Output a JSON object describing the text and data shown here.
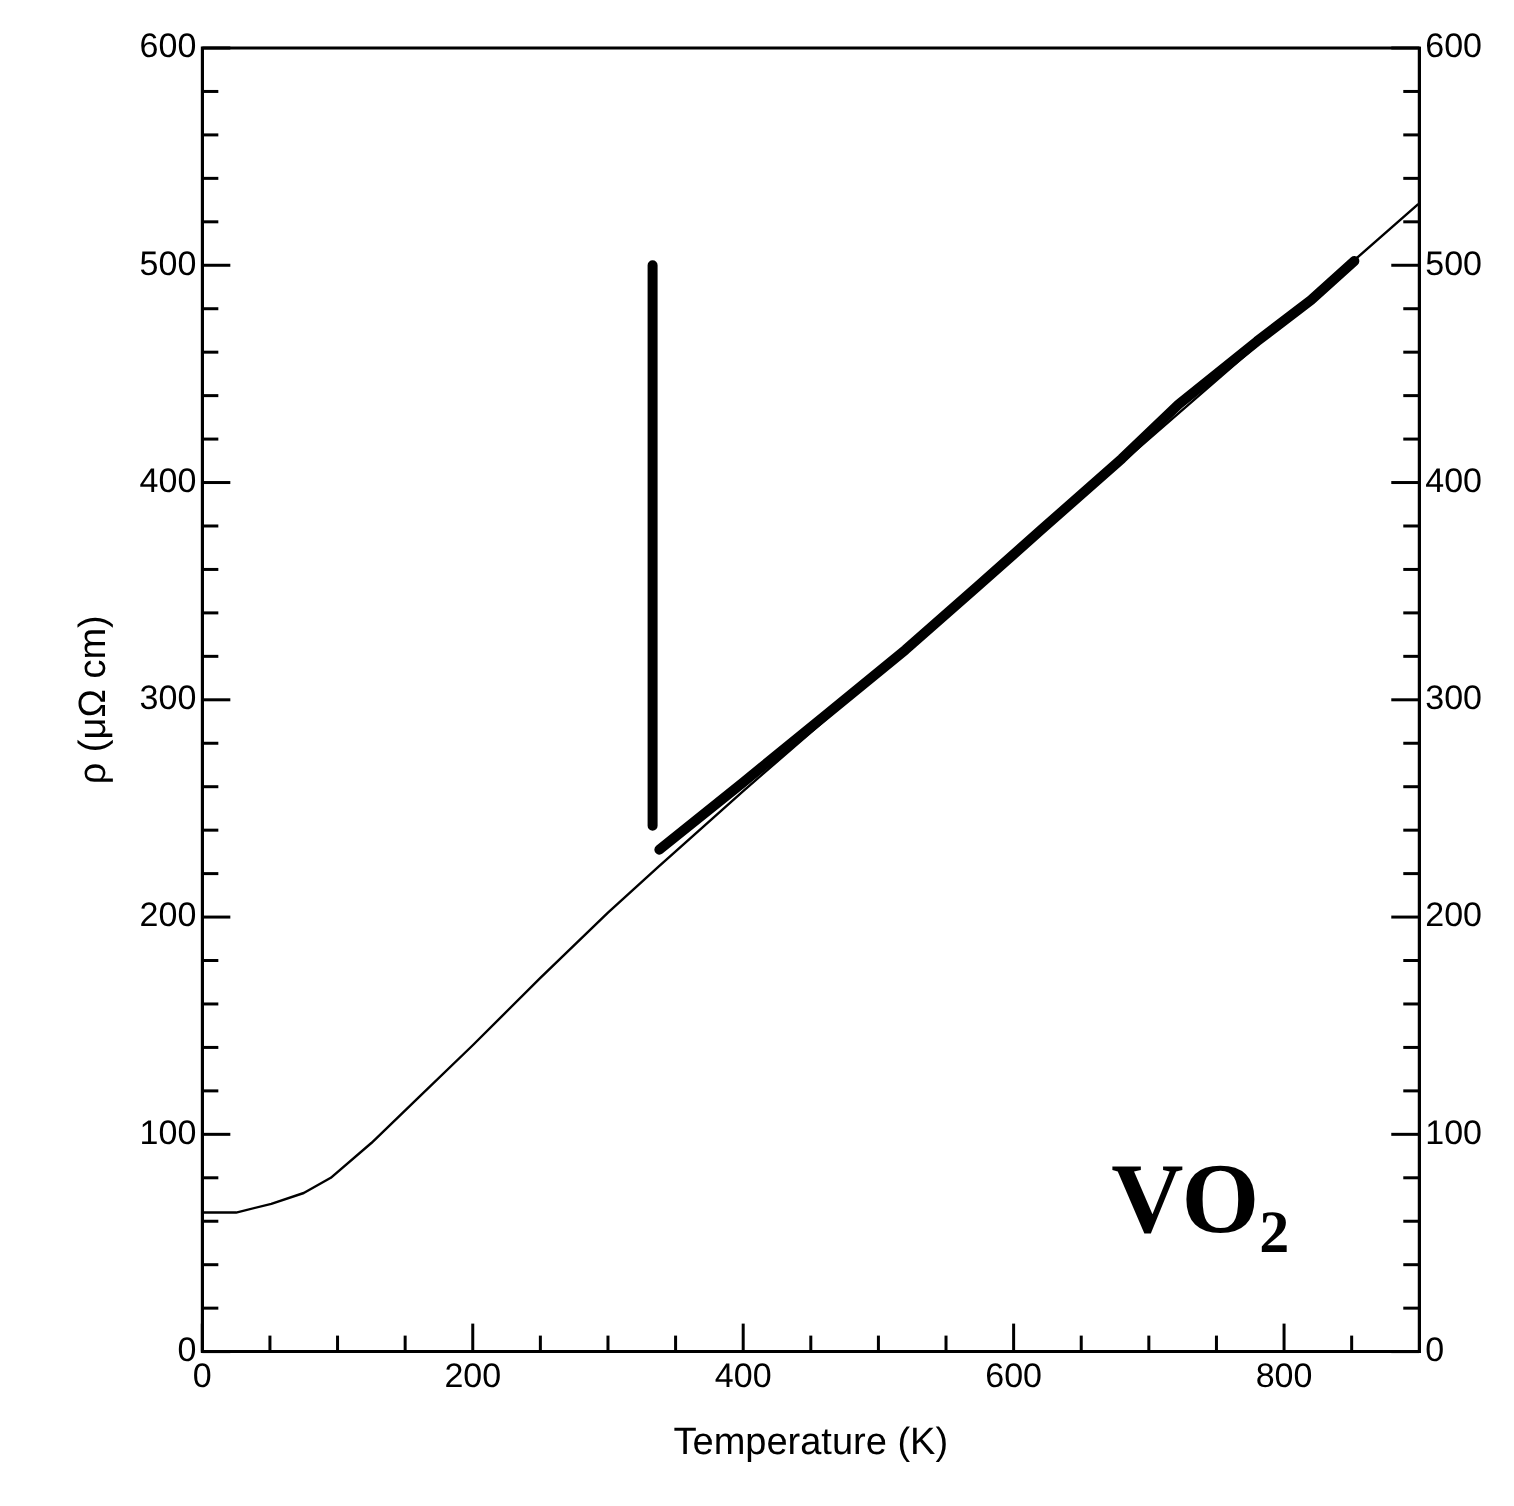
{
  "chart_data": {
    "type": "line",
    "xlabel": "Temperature (K)",
    "ylabel": "ρ (μΩ cm)",
    "annotations": [
      "VO₂"
    ],
    "xlim": [
      0,
      900
    ],
    "xticks": [
      0,
      {
        "value": 50,
        "label": null
      },
      {
        "value": 100,
        "label": null
      },
      {
        "value": 150,
        "label": null
      },
      200,
      {
        "value": 250,
        "label": null
      },
      {
        "value": 300,
        "label": null
      },
      {
        "value": 350,
        "label": null
      },
      400,
      {
        "value": 450,
        "label": null
      },
      {
        "value": 500,
        "label": null
      },
      {
        "value": 550,
        "label": null
      },
      600,
      {
        "value": 650,
        "label": null
      },
      {
        "value": 700,
        "label": null
      },
      {
        "value": 750,
        "label": null
      },
      800,
      {
        "value": 850,
        "label": null
      }
    ],
    "ylim": [
      0,
      600
    ],
    "yticks": [
      0,
      {
        "value": 20,
        "label": null
      },
      {
        "value": 40,
        "label": null
      },
      {
        "value": 60,
        "label": null
      },
      {
        "value": 80,
        "label": null
      },
      100,
      {
        "value": 120,
        "label": null
      },
      {
        "value": 140,
        "label": null
      },
      {
        "value": 160,
        "label": null
      },
      {
        "value": 180,
        "label": null
      },
      200,
      {
        "value": 220,
        "label": null
      },
      {
        "value": 240,
        "label": null
      },
      {
        "value": 260,
        "label": null
      },
      {
        "value": 280,
        "label": null
      },
      300,
      {
        "value": 320,
        "label": null
      },
      {
        "value": 340,
        "label": null
      },
      {
        "value": 360,
        "label": null
      },
      {
        "value": 380,
        "label": null
      },
      400,
      {
        "value": 420,
        "label": null
      },
      {
        "value": 440,
        "label": null
      },
      {
        "value": 460,
        "label": null
      },
      {
        "value": 480,
        "label": null
      },
      500,
      {
        "value": 520,
        "label": null
      },
      {
        "value": 540,
        "label": null
      },
      {
        "value": 560,
        "label": null
      },
      {
        "value": 580,
        "label": null
      },
      600
    ],
    "y2lim": [
      0,
      600
    ],
    "y2ticks": [
      0,
      100,
      200,
      300,
      400,
      500,
      600
    ],
    "grid": false,
    "legend": false,
    "marker": "none",
    "line_style": "solid",
    "series": [
      {
        "color": "#000000",
        "x": [
          0,
          25,
          51,
          75,
          95,
          125,
          160,
          200,
          250,
          300,
          337,
          400,
          500,
          600,
          700,
          800,
          899
        ],
        "values": [
          64,
          64,
          68,
          73,
          80,
          96,
          117,
          141,
          172,
          202,
          223,
          258,
          312,
          366,
          420,
          474,
          528
        ]
      },
      {
        "color": "#000000",
        "x": [
          333,
          333
        ],
        "values": [
          500,
          242
        ]
      },
      {
        "color": "#000000",
        "x": [
          338,
          400,
          461,
          520,
          573,
          620,
          680,
          722,
          780,
          820,
          852
        ],
        "values": [
          231,
          262,
          293,
          323,
          352,
          378,
          411,
          436,
          465,
          484,
          502
        ]
      }
    ]
  }
}
